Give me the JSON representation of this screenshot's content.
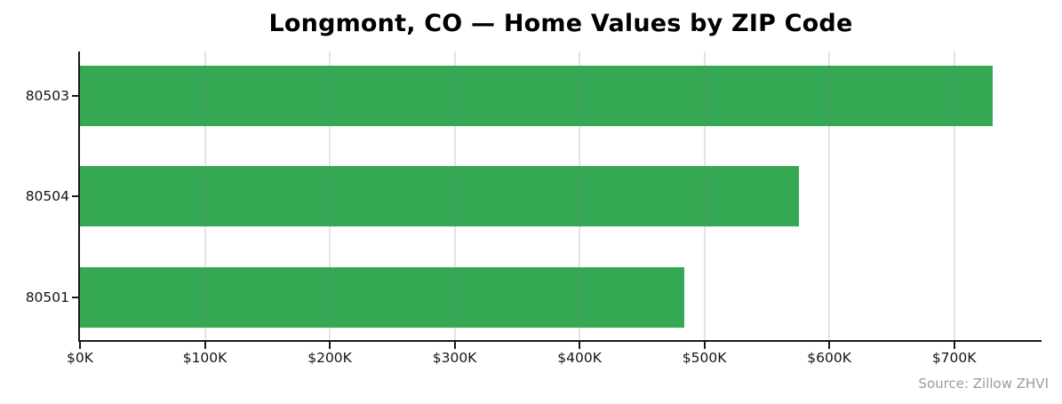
{
  "chart_data": {
    "type": "bar",
    "orientation": "horizontal",
    "title": "Longmont, CO — Home Values by ZIP Code",
    "categories": [
      "80503",
      "80504",
      "80501"
    ],
    "values": [
      731000,
      576000,
      484000
    ],
    "value_unit": "USD",
    "xlabel": "",
    "ylabel": "",
    "x_tick_values": [
      0,
      100000,
      200000,
      300000,
      400000,
      500000,
      600000,
      700000
    ],
    "x_tick_labels": [
      "$0K",
      "$100K",
      "$200K",
      "$300K",
      "$400K",
      "$500K",
      "$600K",
      "$700K"
    ],
    "xlim": [
      0,
      770000
    ],
    "grid": "vertical-gridlines-on",
    "legend": "none",
    "source": "Source: Zillow ZHVI",
    "colors": {
      "bar": "#34a853",
      "axis": "#1a1a1a",
      "tick_text": "#141414",
      "title_text": "#000000",
      "source_text": "#9b9b9b",
      "background": "#ffffff"
    }
  }
}
